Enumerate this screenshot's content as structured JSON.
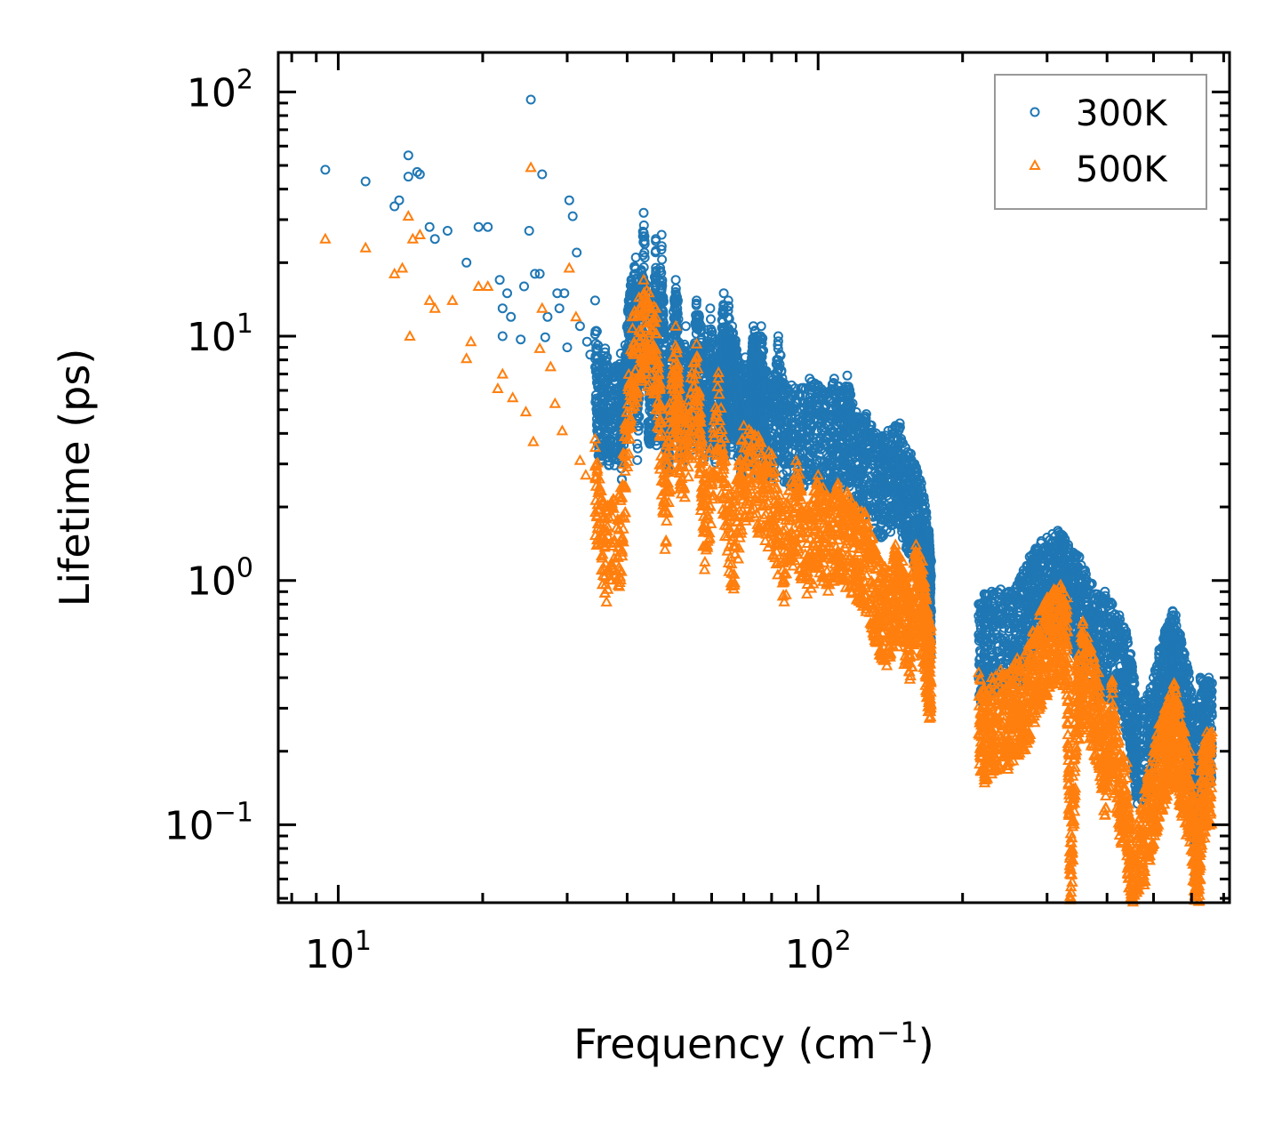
{
  "chart_data": {
    "type": "scatter",
    "xscale": "log",
    "yscale": "log",
    "xlim": [
      7.5,
      720
    ],
    "ylim": [
      0.048,
      145
    ],
    "xlabel": "Frequency (cm",
    "xlabel_sup": "−1",
    "xlabel_end": ")",
    "ylabel": "Lifetime (ps)",
    "grid": false,
    "legend_position": "top-right",
    "x_ticks": [
      {
        "value": 10,
        "base": "10",
        "exp": "1"
      },
      {
        "value": 100,
        "base": "10",
        "exp": "2"
      }
    ],
    "y_ticks": [
      {
        "value": 0.1,
        "base": "10",
        "exp": "−1"
      },
      {
        "value": 1,
        "base": "10",
        "exp": "0"
      },
      {
        "value": 10,
        "base": "10",
        "exp": "1"
      },
      {
        "value": 100,
        "base": "10",
        "exp": "2"
      }
    ],
    "series": [
      {
        "name": "300K",
        "marker": "circle",
        "color": "#1f77b4",
        "points": [
          [
            9.4,
            48
          ],
          [
            11.4,
            43
          ],
          [
            13.1,
            34
          ],
          [
            13.4,
            36
          ],
          [
            14.0,
            55
          ],
          [
            14.0,
            45
          ],
          [
            14.6,
            47
          ],
          [
            14.8,
            46
          ],
          [
            15.5,
            28
          ],
          [
            15.9,
            25
          ],
          [
            16.9,
            27
          ],
          [
            19.6,
            28
          ],
          [
            20.5,
            28
          ],
          [
            18.5,
            20
          ],
          [
            21.7,
            17
          ],
          [
            22.5,
            15
          ],
          [
            22.0,
            13
          ],
          [
            22.9,
            12
          ],
          [
            24.4,
            16
          ],
          [
            25.0,
            27
          ],
          [
            25.2,
            93
          ],
          [
            25.7,
            18
          ],
          [
            26.3,
            18
          ],
          [
            26.6,
            46
          ],
          [
            27.3,
            12
          ],
          [
            28.6,
            15
          ],
          [
            28.9,
            13
          ],
          [
            29.6,
            15
          ],
          [
            30.3,
            36
          ],
          [
            30.8,
            31
          ],
          [
            31.4,
            22
          ],
          [
            31.9,
            11
          ],
          [
            33.0,
            9.5
          ],
          [
            34.3,
            14
          ],
          [
            36.0,
            8.9
          ],
          [
            38.8,
            8.5
          ],
          [
            40.3,
            14
          ],
          [
            40.8,
            17
          ],
          [
            41.7,
            21
          ],
          [
            43.3,
            32
          ],
          [
            45.2,
            11
          ],
          [
            45.9,
            25
          ],
          [
            47.2,
            26
          ],
          [
            48.0,
            8.4
          ],
          [
            49.0,
            8.4
          ],
          [
            50.5,
            17
          ],
          [
            51.0,
            14
          ],
          [
            53.0,
            11
          ],
          [
            55.8,
            14
          ],
          [
            57.0,
            11
          ],
          [
            59.6,
            13
          ],
          [
            62.5,
            9.8
          ],
          [
            63.6,
            15
          ],
          [
            65.0,
            14
          ],
          [
            66.2,
            11
          ],
          [
            67.3,
            9.6
          ],
          [
            70.5,
            8.2
          ],
          [
            73.3,
            11
          ],
          [
            74.8,
            10
          ],
          [
            76.1,
            11
          ],
          [
            82.6,
            10
          ],
          [
            22.0,
            10
          ],
          [
            24.0,
            9.7
          ],
          [
            27.0,
            9.9
          ],
          [
            30.0,
            9.0
          ],
          [
            33.5,
            8.4
          ],
          [
            35.0,
            7.5
          ],
          [
            37.0,
            7.0
          ],
          [
            39.0,
            6.6
          ],
          [
            42.0,
            7.5
          ],
          [
            44.5,
            7.8
          ],
          [
            46.0,
            8.8
          ],
          [
            48.5,
            6.9
          ],
          [
            52.0,
            7.1
          ],
          [
            55.0,
            8.4
          ],
          [
            58.0,
            7.9
          ],
          [
            61.0,
            7.6
          ],
          [
            64.0,
            7.2
          ],
          [
            66.0,
            8.2
          ],
          [
            69.0,
            6.6
          ],
          [
            72.0,
            7.0
          ],
          [
            75.0,
            6.9
          ],
          [
            78.0,
            7.2
          ],
          [
            80.0,
            6.2
          ],
          [
            85.0,
            6.4
          ],
          [
            88.0,
            6.3
          ],
          [
            92.0,
            6.1
          ],
          [
            96.0,
            6.7
          ],
          [
            100.0,
            6.3
          ],
          [
            104.0,
            5.9
          ],
          [
            108.0,
            6.7
          ],
          [
            112.0,
            6.0
          ],
          [
            115.0,
            6.9
          ],
          [
            118.0,
            5.3
          ],
          [
            122.0,
            4.6
          ],
          [
            126.0,
            4.8
          ],
          [
            132.0,
            4.0
          ],
          [
            136.0,
            3.9
          ],
          [
            140.0,
            4.1
          ],
          [
            145.0,
            4.3
          ],
          [
            148.0,
            4.4
          ],
          [
            152.0,
            3.5
          ],
          [
            156.0,
            3.3
          ],
          [
            160.0,
            2.9
          ],
          [
            164.0,
            2.5
          ],
          [
            166.0,
            2.2
          ],
          [
            168.0,
            1.9
          ],
          [
            170.0,
            1.6
          ],
          [
            171.0,
            1.3
          ],
          [
            172.0,
            1.2
          ],
          [
            216.0,
            0.8
          ],
          [
            222.0,
            0.88
          ],
          [
            230.0,
            0.9
          ],
          [
            240.0,
            0.92
          ],
          [
            250.0,
            0.9
          ],
          [
            260.0,
            0.96
          ],
          [
            268.0,
            1.1
          ],
          [
            276.0,
            1.25
          ],
          [
            284.0,
            1.35
          ],
          [
            292.0,
            1.45
          ],
          [
            300.0,
            1.5
          ],
          [
            308.0,
            1.55
          ],
          [
            316.0,
            1.6
          ],
          [
            324.0,
            1.52
          ],
          [
            332.0,
            1.4
          ],
          [
            340.0,
            1.3
          ],
          [
            350.0,
            1.25
          ],
          [
            360.0,
            1.1
          ],
          [
            372.0,
            0.97
          ],
          [
            384.0,
            0.86
          ],
          [
            396.0,
            0.9
          ],
          [
            410.0,
            0.8
          ],
          [
            424.0,
            0.72
          ],
          [
            438.0,
            0.62
          ],
          [
            448.0,
            0.5
          ],
          [
            455.0,
            0.4
          ],
          [
            462.0,
            0.3
          ],
          [
            486.0,
            0.34
          ],
          [
            500.0,
            0.4
          ],
          [
            514.0,
            0.52
          ],
          [
            528.0,
            0.62
          ],
          [
            540.0,
            0.68
          ],
          [
            548.0,
            0.75
          ],
          [
            556.0,
            0.72
          ],
          [
            568.0,
            0.6
          ],
          [
            580.0,
            0.5
          ],
          [
            592.0,
            0.42
          ],
          [
            604.0,
            0.32
          ],
          [
            614.0,
            0.12
          ],
          [
            626.0,
            0.4
          ],
          [
            640.0,
            0.38
          ],
          [
            652.0,
            0.4
          ],
          [
            662.0,
            0.38
          ]
        ]
      },
      {
        "name": "500K",
        "marker": "triangle",
        "color": "#ff7f0e",
        "points": [
          [
            9.4,
            25
          ],
          [
            11.4,
            23
          ],
          [
            13.1,
            18
          ],
          [
            13.6,
            19
          ],
          [
            14.0,
            31
          ],
          [
            14.1,
            10
          ],
          [
            14.3,
            25
          ],
          [
            14.8,
            26
          ],
          [
            15.5,
            14
          ],
          [
            15.9,
            13
          ],
          [
            17.3,
            14
          ],
          [
            18.5,
            8.1
          ],
          [
            18.9,
            9.5
          ],
          [
            19.6,
            16
          ],
          [
            20.5,
            16
          ],
          [
            21.5,
            6.1
          ],
          [
            22.0,
            7.0
          ],
          [
            23.1,
            5.6
          ],
          [
            24.6,
            4.9
          ],
          [
            25.2,
            49
          ],
          [
            25.5,
            3.7
          ],
          [
            26.3,
            8.9
          ],
          [
            26.6,
            13
          ],
          [
            27.7,
            7.5
          ],
          [
            28.3,
            5.3
          ],
          [
            29.3,
            4.1
          ],
          [
            30.3,
            19
          ],
          [
            31.3,
            12
          ],
          [
            31.9,
            3.1
          ],
          [
            32.8,
            2.7
          ],
          [
            34.3,
            3.8
          ],
          [
            36.0,
            2.0
          ],
          [
            38.8,
            2.4
          ],
          [
            41.0,
            12
          ],
          [
            43.3,
            17
          ],
          [
            45.9,
            13
          ],
          [
            48.0,
            3.2
          ],
          [
            50.5,
            11
          ],
          [
            52.0,
            4.6
          ],
          [
            55.8,
            9.3
          ],
          [
            58.0,
            2.6
          ],
          [
            62.0,
            7.1
          ],
          [
            66.0,
            2.0
          ],
          [
            70.0,
            4.3
          ],
          [
            75.0,
            3.9
          ],
          [
            80.0,
            3.3
          ],
          [
            85.0,
            2.0
          ],
          [
            90.0,
            3.1
          ],
          [
            95.0,
            2.0
          ],
          [
            100.0,
            2.7
          ],
          [
            105.0,
            2.2
          ],
          [
            110.0,
            2.5
          ],
          [
            115.0,
            2.3
          ],
          [
            120.0,
            2.0
          ],
          [
            125.0,
            1.9
          ],
          [
            130.0,
            1.5
          ],
          [
            135.0,
            1.2
          ],
          [
            140.0,
            1.1
          ],
          [
            145.0,
            1.4
          ],
          [
            150.0,
            1.2
          ],
          [
            155.0,
            0.9
          ],
          [
            160.0,
            1.4
          ],
          [
            165.0,
            1.2
          ],
          [
            168.0,
            0.85
          ],
          [
            170.0,
            0.7
          ],
          [
            172.0,
            0.65
          ],
          [
            216.0,
            0.42
          ],
          [
            222.0,
            0.36
          ],
          [
            230.0,
            0.4
          ],
          [
            240.0,
            0.43
          ],
          [
            250.0,
            0.42
          ],
          [
            260.0,
            0.48
          ],
          [
            270.0,
            0.5
          ],
          [
            280.0,
            0.62
          ],
          [
            290.0,
            0.75
          ],
          [
            300.0,
            0.85
          ],
          [
            310.0,
            0.92
          ],
          [
            320.0,
            0.96
          ],
          [
            330.0,
            0.85
          ],
          [
            336.0,
            0.092
          ],
          [
            345.0,
            0.45
          ],
          [
            356.0,
            0.68
          ],
          [
            370.0,
            0.53
          ],
          [
            384.0,
            0.42
          ],
          [
            396.0,
            0.25
          ],
          [
            410.0,
            0.39
          ],
          [
            424.0,
            0.22
          ],
          [
            440.0,
            0.18
          ],
          [
            452.0,
            0.07
          ],
          [
            462.0,
            0.1
          ],
          [
            486.0,
            0.16
          ],
          [
            500.0,
            0.2
          ],
          [
            514.0,
            0.26
          ],
          [
            528.0,
            0.3
          ],
          [
            540.0,
            0.34
          ],
          [
            552.0,
            0.38
          ],
          [
            566.0,
            0.3
          ],
          [
            580.0,
            0.24
          ],
          [
            596.0,
            0.2
          ],
          [
            612.0,
            0.105
          ],
          [
            618.0,
            0.075
          ],
          [
            630.0,
            0.2
          ],
          [
            646.0,
            0.24
          ],
          [
            662.0,
            0.24
          ]
        ]
      }
    ]
  }
}
